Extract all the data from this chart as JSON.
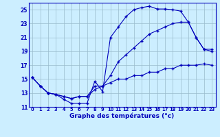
{
  "xlabel": "Graphe des températures (°c)",
  "background_color": "#cceeff",
  "line_color": "#0000bb",
  "grid_color": "#99bbcc",
  "xlim": [
    -0.5,
    23.5
  ],
  "ylim": [
    11,
    26
  ],
  "yticks": [
    11,
    13,
    15,
    17,
    19,
    21,
    23,
    25
  ],
  "xticks": [
    0,
    1,
    2,
    3,
    4,
    5,
    6,
    7,
    8,
    9,
    10,
    11,
    12,
    13,
    14,
    15,
    16,
    17,
    18,
    19,
    20,
    21,
    22,
    23
  ],
  "hours": [
    0,
    1,
    2,
    3,
    4,
    5,
    6,
    7,
    8,
    9,
    10,
    11,
    12,
    13,
    14,
    15,
    16,
    17,
    18,
    19,
    20,
    21,
    22,
    23
  ],
  "line1": [
    15.2,
    14.0,
    13.0,
    12.8,
    12.1,
    11.5,
    11.5,
    11.5,
    14.7,
    13.2,
    21.0,
    22.5,
    24.0,
    25.0,
    25.3,
    25.5,
    25.1,
    25.1,
    25.0,
    24.8,
    23.2,
    21.0,
    19.3,
    19.3
  ],
  "line2": [
    15.2,
    14.0,
    13.0,
    12.8,
    12.5,
    12.2,
    12.5,
    12.5,
    14.0,
    14.0,
    15.5,
    17.5,
    18.5,
    19.5,
    20.5,
    21.5,
    22.0,
    22.5,
    23.0,
    23.2,
    23.2,
    21.0,
    19.3,
    19.0
  ],
  "line3": [
    15.2,
    14.0,
    13.0,
    12.8,
    12.5,
    12.2,
    12.5,
    12.5,
    13.5,
    14.0,
    14.5,
    15.0,
    15.0,
    15.5,
    15.5,
    16.0,
    16.0,
    16.5,
    16.5,
    17.0,
    17.0,
    17.0,
    17.2,
    17.0
  ]
}
